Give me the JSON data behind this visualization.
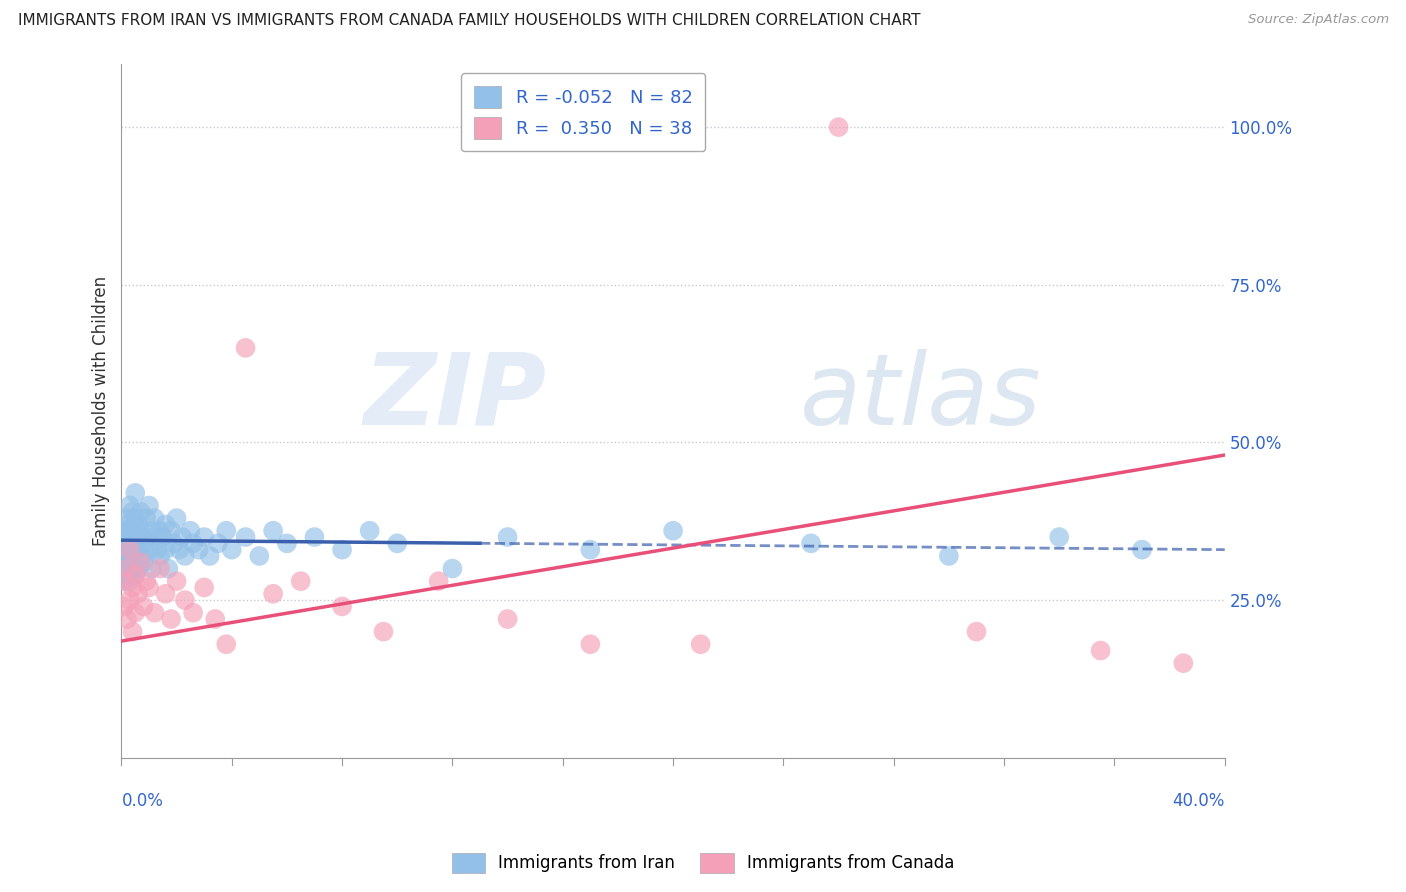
{
  "title": "IMMIGRANTS FROM IRAN VS IMMIGRANTS FROM CANADA FAMILY HOUSEHOLDS WITH CHILDREN CORRELATION CHART",
  "source": "Source: ZipAtlas.com",
  "ylabel": "Family Households with Children",
  "iran_R": -0.052,
  "iran_N": 82,
  "canada_R": 0.35,
  "canada_N": 38,
  "xlim": [
    0.0,
    0.4
  ],
  "ylim": [
    0.0,
    1.1
  ],
  "yticks": [
    0.25,
    0.5,
    0.75,
    1.0
  ],
  "ytick_labels": [
    "25.0%",
    "50.0%",
    "75.0%",
    "100.0%"
  ],
  "iran_color": "#92C0E8",
  "canada_color": "#F4A0B8",
  "iran_line_color": "#3A5FAD",
  "canada_line_color": "#E8507A",
  "watermark_zip": "ZIP",
  "watermark_atlas": "atlas",
  "iran_trend_x0": 0.0,
  "iran_trend_y0": 0.345,
  "iran_trend_x1": 0.4,
  "iran_trend_y1": 0.33,
  "canada_trend_x0": 0.0,
  "canada_trend_y0": 0.185,
  "canada_trend_x1": 0.4,
  "canada_trend_y1": 0.48,
  "iran_scatter_x": [
    0.001,
    0.001,
    0.001,
    0.001,
    0.001,
    0.002,
    0.002,
    0.002,
    0.002,
    0.002,
    0.002,
    0.002,
    0.003,
    0.003,
    0.003,
    0.003,
    0.003,
    0.003,
    0.003,
    0.004,
    0.004,
    0.004,
    0.004,
    0.004,
    0.005,
    0.005,
    0.005,
    0.005,
    0.005,
    0.006,
    0.006,
    0.006,
    0.007,
    0.007,
    0.007,
    0.008,
    0.008,
    0.009,
    0.009,
    0.01,
    0.01,
    0.011,
    0.011,
    0.012,
    0.012,
    0.013,
    0.014,
    0.014,
    0.015,
    0.016,
    0.016,
    0.017,
    0.018,
    0.019,
    0.02,
    0.021,
    0.022,
    0.023,
    0.025,
    0.026,
    0.028,
    0.03,
    0.032,
    0.035,
    0.038,
    0.04,
    0.045,
    0.05,
    0.055,
    0.06,
    0.07,
    0.08,
    0.09,
    0.1,
    0.12,
    0.14,
    0.17,
    0.2,
    0.25,
    0.3,
    0.34,
    0.37
  ],
  "iran_scatter_y": [
    0.33,
    0.35,
    0.3,
    0.36,
    0.28,
    0.34,
    0.32,
    0.37,
    0.29,
    0.35,
    0.31,
    0.38,
    0.33,
    0.36,
    0.3,
    0.34,
    0.4,
    0.28,
    0.35,
    0.36,
    0.32,
    0.39,
    0.3,
    0.34,
    0.35,
    0.33,
    0.38,
    0.29,
    0.42,
    0.37,
    0.33,
    0.3,
    0.36,
    0.32,
    0.39,
    0.35,
    0.31,
    0.38,
    0.34,
    0.4,
    0.33,
    0.36,
    0.3,
    0.35,
    0.38,
    0.33,
    0.36,
    0.32,
    0.35,
    0.37,
    0.33,
    0.3,
    0.36,
    0.34,
    0.38,
    0.33,
    0.35,
    0.32,
    0.36,
    0.34,
    0.33,
    0.35,
    0.32,
    0.34,
    0.36,
    0.33,
    0.35,
    0.32,
    0.36,
    0.34,
    0.35,
    0.33,
    0.36,
    0.34,
    0.3,
    0.35,
    0.33,
    0.36,
    0.34,
    0.32,
    0.35,
    0.33
  ],
  "canada_scatter_x": [
    0.001,
    0.001,
    0.002,
    0.002,
    0.003,
    0.003,
    0.004,
    0.004,
    0.005,
    0.005,
    0.006,
    0.007,
    0.008,
    0.009,
    0.01,
    0.012,
    0.014,
    0.016,
    0.018,
    0.02,
    0.023,
    0.026,
    0.03,
    0.034,
    0.038,
    0.045,
    0.055,
    0.065,
    0.08,
    0.095,
    0.115,
    0.14,
    0.17,
    0.21,
    0.26,
    0.31,
    0.355,
    0.385
  ],
  "canada_scatter_y": [
    0.28,
    0.24,
    0.3,
    0.22,
    0.33,
    0.25,
    0.27,
    0.2,
    0.29,
    0.23,
    0.26,
    0.31,
    0.24,
    0.28,
    0.27,
    0.23,
    0.3,
    0.26,
    0.22,
    0.28,
    0.25,
    0.23,
    0.27,
    0.22,
    0.18,
    0.65,
    0.26,
    0.28,
    0.24,
    0.2,
    0.28,
    0.22,
    0.18,
    0.18,
    1.0,
    0.2,
    0.17,
    0.15
  ]
}
